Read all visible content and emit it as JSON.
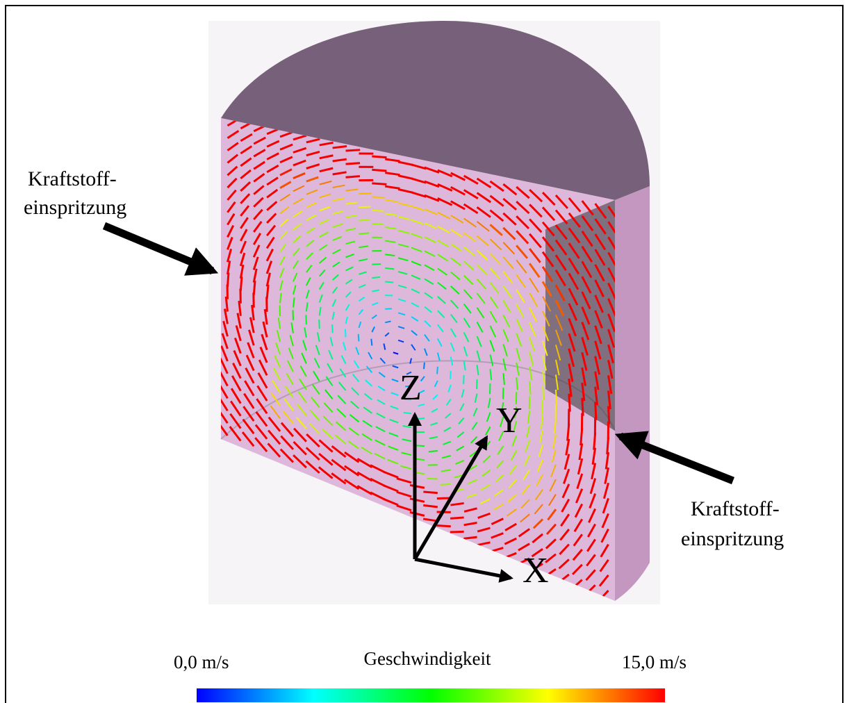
{
  "annotations": [
    {
      "lines": [
        "Kraftstoff-",
        "einspritzung"
      ]
    },
    {
      "lines": [
        "Kraftstoff-",
        "einspritzung"
      ]
    }
  ],
  "axes": {
    "z": "Z",
    "y": "Y",
    "x": "X"
  },
  "colorbar": {
    "title": "Geschwindigkeit",
    "min_label": "0,0 m/s",
    "max_label": "15,0 m/s"
  }
}
